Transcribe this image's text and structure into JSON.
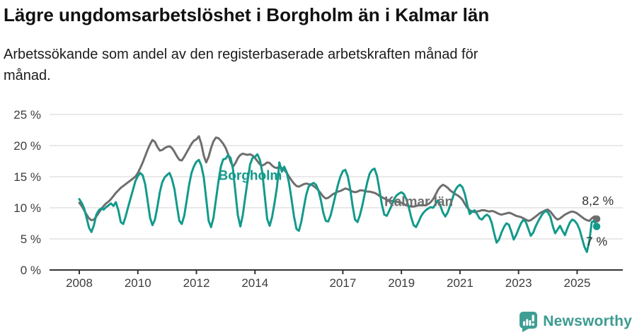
{
  "header": {
    "title": "Lägre ungdomsarbetslöshet i Borgholm än i Kalmar län",
    "subtitle_line1": "Arbetssökande som andel av den registerbaserade arbetskraften månad för",
    "subtitle_line2": "månad."
  },
  "footer": {
    "brand": "Newsworthy"
  },
  "colors": {
    "borgholm": "#139a8b",
    "kalmar": "#6e6e6e",
    "grid": "#dcdcdc",
    "axis": "#333333",
    "tick_text": "#3d3d3d",
    "annotation_text": "#333333",
    "logo": "#3f9e94",
    "title_text": "#111111"
  },
  "chart_data": {
    "type": "line",
    "title": "Lägre ungdomsarbetslöshet i Borgholm än i Kalmar län",
    "subtitle": "Arbetssökande som andel av den registerbaserade arbetskraften månad för månad.",
    "x_axis": {
      "unit": "month",
      "start": "2008-01",
      "end": "2025-09",
      "count": 213,
      "tick_years": [
        2008,
        2010,
        2012,
        2014,
        2017,
        2019,
        2021,
        2023,
        2025
      ],
      "tick_labels": [
        "2008",
        "2010",
        "2012",
        "2014",
        "2017",
        "2019",
        "2021",
        "2023",
        "2025"
      ]
    },
    "y_axis": {
      "min": 0,
      "max": 25,
      "ticks": [
        0,
        5,
        10,
        15,
        20,
        25
      ],
      "suffix": " %",
      "grid": true
    },
    "legend_position": "inline-labels",
    "series": [
      {
        "name": "Kalmar län",
        "color": "#6e6e6e",
        "values": [
          10.8,
          10.3,
          9.6,
          8.9,
          8.3,
          8.0,
          8.1,
          8.6,
          9.2,
          9.8,
          10.3,
          10.7,
          11.0,
          11.4,
          11.9,
          12.4,
          12.8,
          13.2,
          13.5,
          13.8,
          14.1,
          14.4,
          14.7,
          15.0,
          15.6,
          16.4,
          17.3,
          18.3,
          19.3,
          20.2,
          20.9,
          20.6,
          19.8,
          19.2,
          19.3,
          19.6,
          19.8,
          19.9,
          19.6,
          19.0,
          18.3,
          17.7,
          17.6,
          18.2,
          18.9,
          19.6,
          20.3,
          20.8,
          21.0,
          21.5,
          20.3,
          18.4,
          17.3,
          18.2,
          19.6,
          20.7,
          21.3,
          21.2,
          20.8,
          20.3,
          19.6,
          18.6,
          17.4,
          16.6,
          17.2,
          18.0,
          18.5,
          18.7,
          18.6,
          18.5,
          18.6,
          18.4,
          18.0,
          17.5,
          17.0,
          16.8,
          17.0,
          17.3,
          17.2,
          16.8,
          16.5,
          16.4,
          16.6,
          16.4,
          16.1,
          15.6,
          15.0,
          14.4,
          13.9,
          13.5,
          13.4,
          13.6,
          13.8,
          13.9,
          13.8,
          13.7,
          13.5,
          13.2,
          12.8,
          12.3,
          11.8,
          11.5,
          11.6,
          11.9,
          12.2,
          12.4,
          12.6,
          12.7,
          12.9,
          13.1,
          13.0,
          12.8,
          12.6,
          12.5,
          12.6,
          12.8,
          12.8,
          12.7,
          12.6,
          12.6,
          12.5,
          12.4,
          12.2,
          11.9,
          11.7,
          11.5,
          11.3,
          11.2,
          11.1,
          11.0,
          11.0,
          10.9,
          10.8,
          10.6,
          10.4,
          10.3,
          10.2,
          10.2,
          10.3,
          10.4,
          10.4,
          10.4,
          10.4,
          10.6,
          10.9,
          11.4,
          12.1,
          12.9,
          13.4,
          13.7,
          13.5,
          13.2,
          12.8,
          12.5,
          12.2,
          12.0,
          11.7,
          11.3,
          10.6,
          10.0,
          9.6,
          9.4,
          9.3,
          9.4,
          9.5,
          9.6,
          9.6,
          9.5,
          9.4,
          9.5,
          9.4,
          9.2,
          9.0,
          8.9,
          9.0,
          9.1,
          9.2,
          9.1,
          8.9,
          8.7,
          8.6,
          8.5,
          8.3,
          8.1,
          7.9,
          8.0,
          8.3,
          8.6,
          8.9,
          9.2,
          9.4,
          9.6,
          9.7,
          9.4,
          8.9,
          8.4,
          8.1,
          8.3,
          8.6,
          8.9,
          9.1,
          9.3,
          9.4,
          9.3,
          9.1,
          8.8,
          8.5,
          8.2,
          8.0,
          7.9,
          8.3,
          8.6,
          8.2
        ]
      },
      {
        "name": "Borgholm",
        "color": "#139a8b",
        "values": [
          11.4,
          10.8,
          9.9,
          8.4,
          6.8,
          6.1,
          7.2,
          8.9,
          9.6,
          9.9,
          9.7,
          10.1,
          10.4,
          10.7,
          10.3,
          10.9,
          9.6,
          7.7,
          7.4,
          8.6,
          10.1,
          11.5,
          12.9,
          14.3,
          15.1,
          15.6,
          15.2,
          13.8,
          11.2,
          8.4,
          7.2,
          8.1,
          10.1,
          12.5,
          14.1,
          14.9,
          15.3,
          15.6,
          14.6,
          13.0,
          10.4,
          7.9,
          7.4,
          8.7,
          11.1,
          13.7,
          15.6,
          16.7,
          17.4,
          17.7,
          16.8,
          14.9,
          11.5,
          7.9,
          6.9,
          8.4,
          11.3,
          14.1,
          16.6,
          17.8,
          17.9,
          18.5,
          18.0,
          16.2,
          12.4,
          8.8,
          7.0,
          8.8,
          11.7,
          14.4,
          17.0,
          18.0,
          18.2,
          18.6,
          17.7,
          15.7,
          11.9,
          8.2,
          7.1,
          8.5,
          10.7,
          13.3,
          17.3,
          15.8,
          16.6,
          15.7,
          13.9,
          11.3,
          8.6,
          6.6,
          6.3,
          7.8,
          10.0,
          12.1,
          13.4,
          13.8,
          14.0,
          13.7,
          12.8,
          11.2,
          9.2,
          7.9,
          7.8,
          8.8,
          10.4,
          12.1,
          13.7,
          15.0,
          15.9,
          16.1,
          15.1,
          13.1,
          10.3,
          8.1,
          7.7,
          8.8,
          10.4,
          12.3,
          14.1,
          15.5,
          16.1,
          16.3,
          15.1,
          12.9,
          10.5,
          8.9,
          8.7,
          9.5,
          10.4,
          11.4,
          12.0,
          12.3,
          12.5,
          12.2,
          11.4,
          10.1,
          8.5,
          7.2,
          6.9,
          7.7,
          8.6,
          9.2,
          9.6,
          9.9,
          10.1,
          10.0,
          10.6,
          11.2,
          10.3,
          9.2,
          8.6,
          9.3,
          10.4,
          11.6,
          12.8,
          13.4,
          13.7,
          13.3,
          12.2,
          10.4,
          9.0,
          9.4,
          9.6,
          9.0,
          8.3,
          8.1,
          8.6,
          8.9,
          8.6,
          7.6,
          5.9,
          4.4,
          4.9,
          6.0,
          6.9,
          7.5,
          7.3,
          6.2,
          4.9,
          5.6,
          6.6,
          7.5,
          8.1,
          7.7,
          6.6,
          5.5,
          6.0,
          7.0,
          7.8,
          8.5,
          9.1,
          9.5,
          9.3,
          8.6,
          7.1,
          5.9,
          6.5,
          7.1,
          6.3,
          5.6,
          6.7,
          7.6,
          8.1,
          7.9,
          7.4,
          6.5,
          5.1,
          3.7,
          2.9,
          4.7,
          7.7,
          7.9,
          7.0
        ]
      }
    ],
    "series_labels": [
      {
        "text": "Borgholm",
        "color": "#139a8b",
        "month_index": 57,
        "value": 14.5
      },
      {
        "text": "Kalmar län",
        "color": "#6f6f6f",
        "month_index": 125,
        "value": 10.3
      }
    ],
    "end_labels": [
      {
        "text": "8,2 %",
        "series": "Kalmar län",
        "value": 10.45,
        "dx": 24,
        "color": "#333333"
      },
      {
        "text": "7 %",
        "series": "Borgholm",
        "value": 3.9,
        "dx": 15,
        "color": "#333333"
      }
    ],
    "end_values": {
      "Kalmar län": 8.2,
      "Borgholm": 7.0
    }
  }
}
